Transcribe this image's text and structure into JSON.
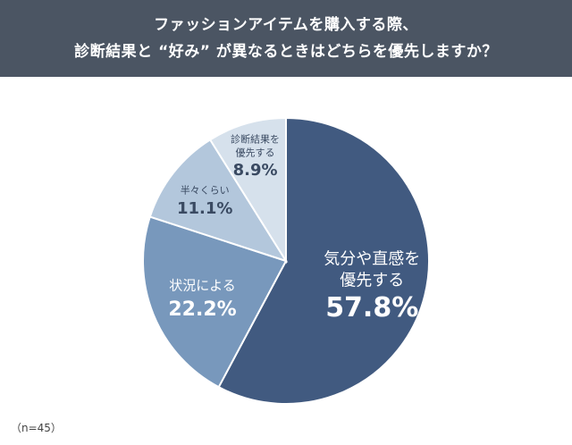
{
  "header": {
    "title_line1": "ファッションアイテムを購入する際、",
    "title_line2": "診断結果と “好み” が異なるときはどちらを優先しますか？"
  },
  "chart_data": {
    "type": "pie",
    "slices": [
      {
        "label_lines": [
          "気分や直感を",
          "優先する"
        ],
        "value": 57.8,
        "value_text": "57.8%",
        "color": "#415a80"
      },
      {
        "label_lines": [
          "状況による"
        ],
        "value": 22.2,
        "value_text": "22.2%",
        "color": "#7898bc"
      },
      {
        "label_lines": [
          "半々くらい"
        ],
        "value": 11.1,
        "value_text": "11.1%",
        "color": "#b3c7dc"
      },
      {
        "label_lines": [
          "診断結果を",
          "優先する"
        ],
        "value": 8.9,
        "value_text": "8.9%",
        "color": "#d6e1ec"
      }
    ],
    "start": "12 o'clock",
    "direction": "clockwise"
  },
  "note": "（n=45）"
}
